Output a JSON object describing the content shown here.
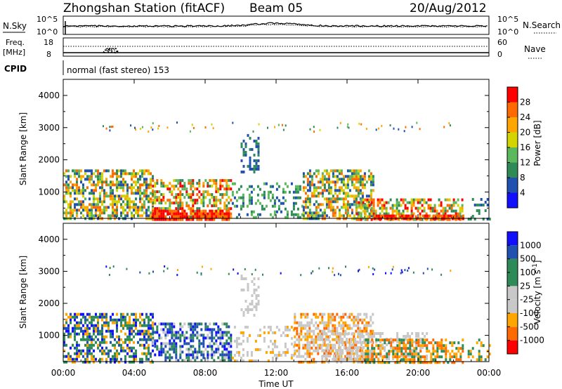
{
  "header": {
    "title": "Zhongshan Station (fitACF)",
    "beam": "Beam 05",
    "date": "20/Aug/2012"
  },
  "top_panels": {
    "nsky_label": "N.Sky",
    "nsearch_label": "N.Search",
    "freq_label_1": "Freq.",
    "freq_label_2": "[MHz]",
    "nave_label": "Nave",
    "cpid_label": "CPID",
    "cpid_text": "normal (fast stereo) 153",
    "noise_left_ticks": [
      "10^5",
      "10^0"
    ],
    "noise_right_ticks": [
      "10^5",
      "10^0"
    ],
    "freq_left_ticks": [
      "18",
      "8"
    ],
    "nave_right_ticks": [
      "60",
      "0"
    ]
  },
  "colors": {
    "power_scale": [
      "#1010ff",
      "#2050b0",
      "#2e8b57",
      "#5cb85c",
      "#d4d400",
      "#ffa500",
      "#ff6a00",
      "#ff0000"
    ],
    "velocity_scale": [
      "#ff0000",
      "#ff6a00",
      "#ffa500",
      "#c8c8c8",
      "#c8c8c8",
      "#2e8b57",
      "#2e8b57",
      "#2050b0",
      "#1010ff"
    ]
  },
  "chart_data": [
    {
      "type": "heatmap",
      "name": "power",
      "x_ticks": [
        "00:00",
        "04:00",
        "08:00",
        "12:00",
        "16:00",
        "20:00",
        "00:00"
      ],
      "xlim": [
        0,
        24
      ],
      "ylabel": "Slant Range [km]",
      "ylim": [
        180,
        4500
      ],
      "y_ticks": [
        1000,
        2000,
        3000,
        4000
      ],
      "colorbar_label": "Power [dB]",
      "colorbar_range": [
        0,
        32
      ],
      "colorbar_ticks": [
        "4",
        "8",
        "12",
        "16",
        "20",
        "24",
        "28"
      ],
      "regions": [
        {
          "t0": 0.0,
          "t1": 5.0,
          "r0": 180,
          "r1": 1700,
          "density": 0.6,
          "levels": [
            1,
            2,
            3,
            4,
            5,
            6
          ]
        },
        {
          "t0": 5.0,
          "t1": 9.5,
          "r0": 180,
          "r1": 1400,
          "density": 0.55,
          "levels": [
            2,
            3,
            4,
            5,
            6,
            7
          ]
        },
        {
          "t0": 5.0,
          "t1": 9.5,
          "r0": 180,
          "r1": 450,
          "density": 0.8,
          "levels": [
            6,
            7
          ]
        },
        {
          "t0": 9.5,
          "t1": 13.5,
          "r0": 180,
          "r1": 1300,
          "density": 0.3,
          "levels": [
            1,
            2,
            3
          ]
        },
        {
          "t0": 10.0,
          "t1": 11.0,
          "r0": 1600,
          "r1": 2800,
          "density": 0.35,
          "levels": [
            1,
            2
          ]
        },
        {
          "t0": 13.5,
          "t1": 17.5,
          "r0": 180,
          "r1": 1700,
          "density": 0.6,
          "levels": [
            1,
            2,
            3,
            4,
            5,
            6
          ]
        },
        {
          "t0": 16.5,
          "t1": 22.5,
          "r0": 180,
          "r1": 800,
          "density": 0.55,
          "levels": [
            2,
            3,
            4,
            5,
            6,
            7
          ]
        },
        {
          "t0": 17.5,
          "t1": 22.5,
          "r0": 180,
          "r1": 300,
          "density": 0.85,
          "levels": [
            6,
            7
          ]
        },
        {
          "t0": 22.8,
          "t1": 24.0,
          "r0": 200,
          "r1": 900,
          "density": 0.25,
          "levels": [
            1,
            2
          ]
        }
      ]
    },
    {
      "type": "heatmap",
      "name": "velocity",
      "x_ticks": [
        "00:00",
        "04:00",
        "08:00",
        "12:00",
        "16:00",
        "20:00",
        "00:00"
      ],
      "xlabel": "Time UT",
      "xlim": [
        0,
        24
      ],
      "ylabel": "Slant Range [km]",
      "ylim": [
        180,
        4500
      ],
      "y_ticks": [
        1000,
        2000,
        3000,
        4000
      ],
      "colorbar_label": "Velocity [m s",
      "colorbar_label_sup": "-1",
      "colorbar_label_end": "]",
      "colorbar_ticks": [
        "1000",
        "500",
        "100",
        "25",
        "-25",
        "-100",
        "-500",
        "-1000"
      ],
      "regions": [
        {
          "t0": 0.0,
          "t1": 5.0,
          "r0": 180,
          "r1": 1700,
          "density": 0.55,
          "levels": [
            5,
            6,
            7,
            8,
            2
          ]
        },
        {
          "t0": 5.0,
          "t1": 9.5,
          "r0": 180,
          "r1": 1400,
          "density": 0.55,
          "levels": [
            6,
            7,
            8,
            3
          ]
        },
        {
          "t0": 9.5,
          "t1": 13.0,
          "r0": 180,
          "r1": 1300,
          "density": 0.3,
          "levels": [
            2,
            3,
            4
          ]
        },
        {
          "t0": 10.0,
          "t1": 11.0,
          "r0": 1600,
          "r1": 2900,
          "density": 0.3,
          "levels": [
            3,
            4
          ]
        },
        {
          "t0": 13.0,
          "t1": 17.5,
          "r0": 180,
          "r1": 1700,
          "density": 0.6,
          "levels": [
            1,
            2,
            3,
            4
          ]
        },
        {
          "t0": 14.5,
          "t1": 20.5,
          "r0": 300,
          "r1": 1100,
          "density": 0.4,
          "levels": [
            3,
            4
          ]
        },
        {
          "t0": 17.0,
          "t1": 22.5,
          "r0": 180,
          "r1": 900,
          "density": 0.55,
          "levels": [
            1,
            2,
            5
          ]
        },
        {
          "t0": 22.8,
          "t1": 24.0,
          "r0": 200,
          "r1": 900,
          "density": 0.25,
          "levels": [
            2,
            6
          ]
        }
      ]
    }
  ]
}
